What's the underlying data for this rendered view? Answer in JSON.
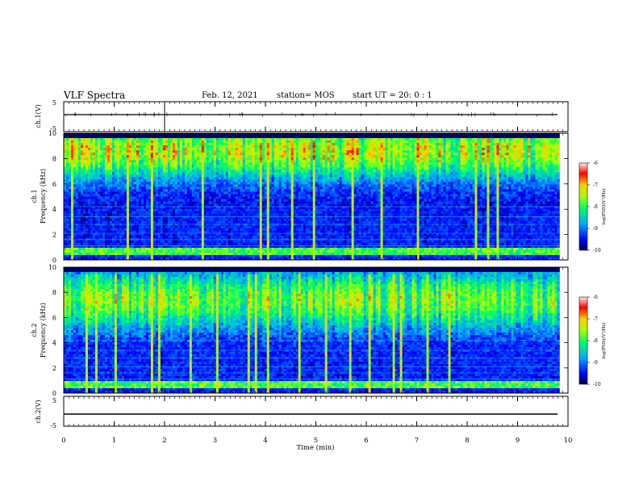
{
  "header": {
    "title": "VLF Spectra",
    "date": "Feb. 12, 2021",
    "station": "station= MOS",
    "start": "start  UT =   20: 0  : 1"
  },
  "chart_data": [
    {
      "type": "line",
      "name": "waveform-ch1",
      "ylabel": "ch.1(V)",
      "ylim": [
        -5,
        5
      ],
      "yticks": [
        "5",
        "-5"
      ],
      "baseline_v": -0.8
    },
    {
      "type": "heatmap",
      "name": "spectrogram-ch1",
      "ylabel_channel": "ch.1",
      "ylabel": "Frequency  (kHz)",
      "ylim": [
        0,
        10
      ],
      "yticks": [
        "0",
        "2",
        "4",
        "6",
        "8",
        "10"
      ],
      "colorbar": {
        "label": "log(PSD)(V²/Hz)",
        "ticks": [
          "-6",
          "-7",
          "-8",
          "-9",
          "-10"
        ],
        "range": [
          -10,
          -6
        ]
      }
    },
    {
      "type": "heatmap",
      "name": "spectrogram-ch2",
      "ylabel_channel": "ch.2",
      "ylabel": "Frequency  (kHz)",
      "ylim": [
        0,
        10
      ],
      "yticks": [
        "0",
        "2",
        "4",
        "6",
        "8",
        "10"
      ],
      "colorbar": {
        "label": "log(PSD)(V²/Hz)",
        "ticks": [
          "-6",
          "-7",
          "-8",
          "-9",
          "-10"
        ],
        "range": [
          -10,
          -6
        ]
      }
    },
    {
      "type": "line",
      "name": "waveform-ch2",
      "ylabel": "ch.2(V)",
      "ylim": [
        -5,
        5
      ],
      "yticks": [
        "5",
        "-5"
      ],
      "baseline_v": -1.8
    }
  ],
  "xaxis": {
    "xlabel": "Time  (min)",
    "xlim": [
      0,
      10
    ],
    "ticks": [
      "0",
      "1",
      "2",
      "3",
      "4",
      "5",
      "6",
      "7",
      "8",
      "9",
      "10"
    ],
    "data_end_min": 9.83
  },
  "colors": {
    "colormap": [
      "#000044",
      "#0000ff",
      "#00aaff",
      "#00ff66",
      "#aaff00",
      "#ffcc00",
      "#ff0000",
      "#ffeeee"
    ]
  }
}
